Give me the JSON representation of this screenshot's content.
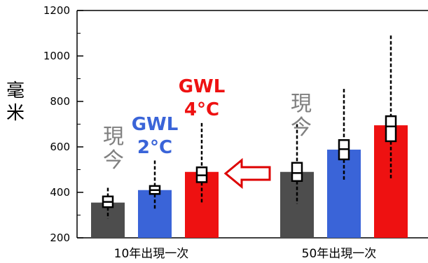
{
  "chart_data": {
    "type": "bar",
    "ylabel": "毫米",
    "ylim": [
      200,
      1200
    ],
    "yticks": [
      200,
      400,
      600,
      800,
      1000,
      1200
    ],
    "ytick_labels": [
      "200",
      "400",
      "600",
      "800",
      "1000",
      "1200"
    ],
    "categories": [
      "10年出現一次",
      "50年出現一次"
    ],
    "series": [
      {
        "name": "現今",
        "color": "#4d4d4d",
        "values": [
          355,
          490
        ]
      },
      {
        "name": "GWL 2°C",
        "color": "#3a64d8",
        "values": [
          410,
          588
        ]
      },
      {
        "name": "GWL 4°C",
        "color": "#ee1111",
        "values": [
          490,
          695
        ]
      }
    ],
    "box_whiskers": [
      [
        {
          "low": 285,
          "q1": 335,
          "median": 358,
          "q3": 382,
          "high": 420
        },
        {
          "low": 325,
          "q1": 393,
          "median": 410,
          "q3": 428,
          "high": 540
        },
        {
          "low": 355,
          "q1": 445,
          "median": 475,
          "q3": 510,
          "high": 705
        }
      ],
      [
        {
          "low": 350,
          "q1": 450,
          "median": 485,
          "q3": 530,
          "high": 700
        },
        {
          "low": 455,
          "q1": 545,
          "median": 590,
          "q3": 630,
          "high": 855
        },
        {
          "low": 455,
          "q1": 625,
          "median": 690,
          "q3": 735,
          "high": 1090
        }
      ]
    ],
    "annotations": [
      {
        "text": "現今",
        "color": "#808080",
        "group": 0
      },
      {
        "text": "GWL",
        "color": "#3a64d8",
        "group": 0
      },
      {
        "text": "2°C",
        "color": "#3a64d8",
        "group": 0
      },
      {
        "text": "GWL",
        "color": "#ee1111",
        "group": 0
      },
      {
        "text": "4°C",
        "color": "#ee1111",
        "group": 0
      },
      {
        "text": "現今",
        "color": "#808080",
        "group": 1
      }
    ],
    "arrow": {
      "direction": "left",
      "color": "#dd0000"
    },
    "grid": false
  }
}
